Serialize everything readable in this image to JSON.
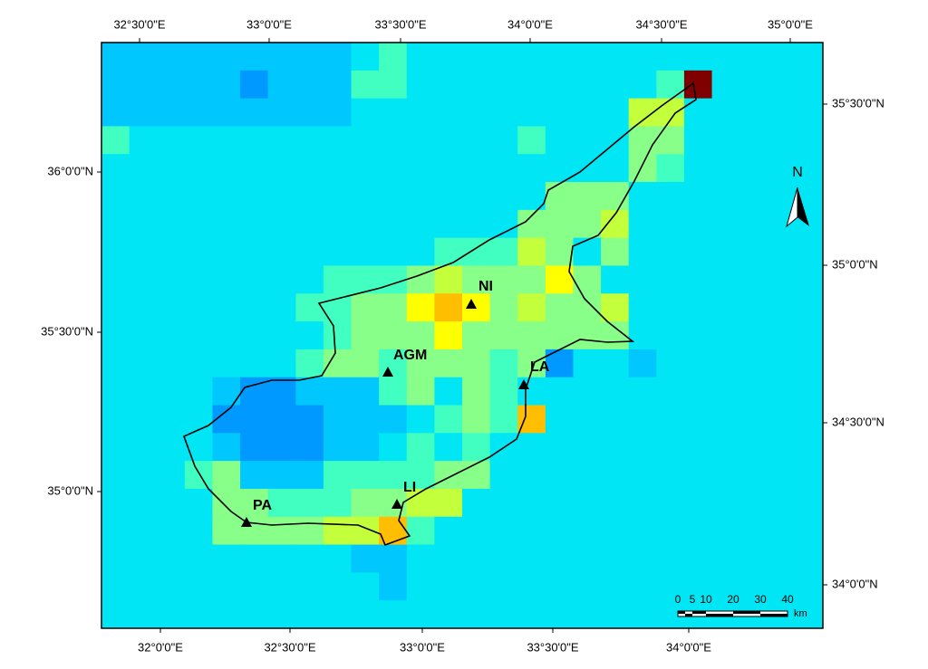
{
  "axes": {
    "top": [
      "32°30'0\"E",
      "33°0'0\"E",
      "33°30'0\"E",
      "34°0'0\"E",
      "34°30'0\"E",
      "35°0'0\"E"
    ],
    "bottom": [
      "32°0'0\"E",
      "32°30'0\"E",
      "33°0'0\"E",
      "33°30'0\"E",
      "34°0'0\"E"
    ],
    "left": [
      "36°0'0\"N",
      "35°30'0\"N",
      "35°0'0\"N"
    ],
    "right": [
      "35°30'0\"N",
      "35°0'0\"N",
      "34°30'0\"N",
      "34°0'0\"N"
    ]
  },
  "places": [
    "NI",
    "AGM",
    "LA",
    "LI",
    "PA"
  ],
  "north": "N",
  "scale": {
    "labels": [
      "0",
      "5",
      "10",
      "20",
      "30",
      "40"
    ],
    "unit": "km"
  }
}
